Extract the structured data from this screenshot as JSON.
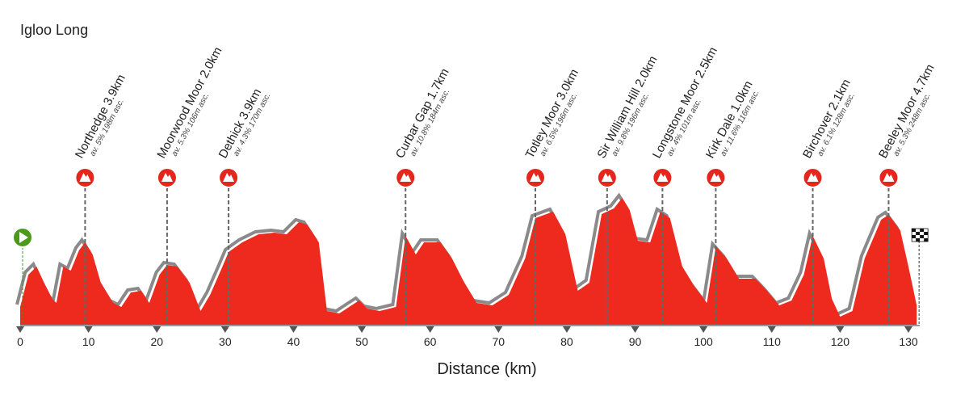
{
  "chart_data": {
    "type": "area",
    "title": "Igloo Long",
    "x_label": "Distance (km)",
    "color": "#ee2a1f",
    "x": [
      0,
      1.2,
      2.4,
      3.5,
      4.7,
      5.3,
      6.3,
      7.4,
      8.6,
      9.5,
      10.6,
      11.8,
      13.6,
      14.8,
      16.2,
      17.7,
      18.9,
      20.4,
      21.5,
      23,
      24.8,
      26.4,
      27.8,
      29.6,
      30.5,
      32.5,
      34.9,
      37.2,
      39,
      40.8,
      42,
      43.7,
      44.9,
      46.7,
      48.5,
      49.6,
      50.8,
      52.6,
      55,
      56.4,
      57.9,
      59.1,
      61.5,
      63.2,
      65,
      66.8,
      69.1,
      71.5,
      73.9,
      75.4,
      78,
      79.8,
      81.6,
      83.3,
      85.1,
      86.9,
      88.1,
      89.2,
      90.4,
      92.2,
      93.7,
      95.1,
      96.9,
      98.7,
      100.5,
      101.8,
      103.4,
      105.2,
      107.6,
      109.3,
      111.1,
      112.9,
      114.7,
      116,
      117.6,
      118.8,
      120,
      121.8,
      123.6,
      126,
      127.1,
      128.8,
      130,
      131.2
    ],
    "values": [
      22,
      62,
      72,
      52,
      32,
      27,
      72,
      67,
      92,
      102,
      87,
      52,
      27,
      22,
      40,
      42,
      27,
      62,
      74,
      72,
      52,
      17,
      37,
      72,
      90,
      102,
      112,
      114,
      112,
      127,
      124,
      102,
      17,
      14,
      24,
      30,
      20,
      17,
      22,
      110,
      87,
      102,
      102,
      82,
      52,
      27,
      24,
      37,
      82,
      132,
      140,
      112,
      42,
      52,
      137,
      144,
      157,
      142,
      104,
      102,
      140,
      132,
      72,
      47,
      27,
      97,
      82,
      57,
      57,
      42,
      24,
      30,
      62,
      110,
      82,
      32,
      10,
      17,
      82,
      130,
      136,
      117,
      72,
      24
    ],
    "xlim": [
      0,
      130
    ],
    "ylim": [
      0,
      180
    ],
    "xticks": [
      0,
      10,
      20,
      30,
      40,
      50,
      60,
      70,
      80,
      90,
      100,
      110,
      120,
      130
    ],
    "climbs": [
      {
        "name": "Northedge 3.9km",
        "detail": "av. 5% 198m asc.",
        "km": 9.5
      },
      {
        "name": "Moorwood Moor 2.0km",
        "detail": "av. 5.3% 106m asc.",
        "km": 21.5
      },
      {
        "name": "Dethick 3.9km",
        "detail": "av. 4.3% 170m asc.",
        "km": 30.5
      },
      {
        "name": "Curbar Gap 1.7km",
        "detail": "av. 10.8% 184m asc.",
        "km": 56.4
      },
      {
        "name": "Totley Moor 3.0km",
        "detail": "av. 6.5% 196m asc.",
        "km": 75.4
      },
      {
        "name": "Sir William Hill 2.0km",
        "detail": "av. 9.8% 196m asc.",
        "km": 85.9
      },
      {
        "name": "Longstone Moor 2.5km",
        "detail": "av. 4% 101m asc.",
        "km": 94
      },
      {
        "name": "Kirk Dale 1.0km",
        "detail": "av. 11.6% 116m asc.",
        "km": 101.8
      },
      {
        "name": "Birchover 2.1km",
        "detail": "av. 6.1% 128m asc.",
        "km": 116
      },
      {
        "name": "Beeley Moor 4.7km",
        "detail": "av. 5.3% 248m asc.",
        "km": 127.1
      }
    ]
  }
}
